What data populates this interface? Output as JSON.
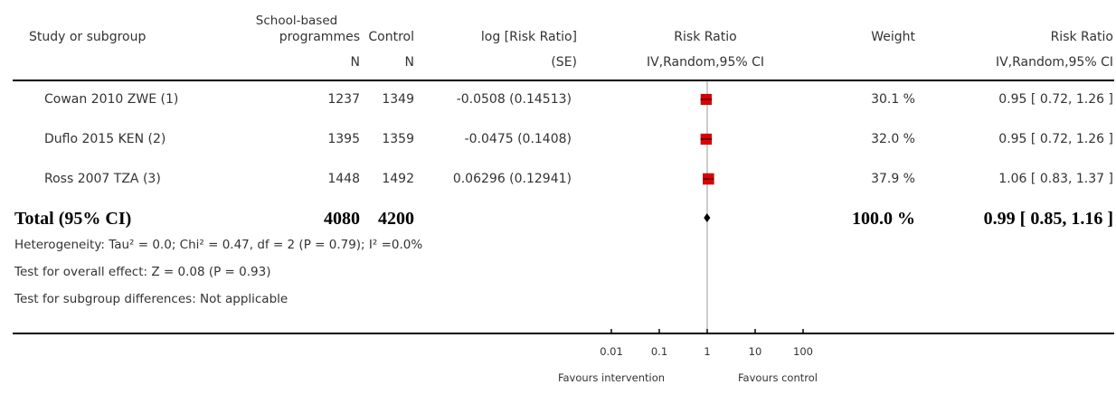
{
  "header": {
    "study": "Study or subgroup",
    "group1_line1": "School-based",
    "group1_line2": "programmes",
    "group1_n": "N",
    "control": "Control",
    "control_n": "N",
    "logrr": "log [Risk Ratio]",
    "logrr_se": "(SE)",
    "rr_plot": "Risk Ratio",
    "rr_plot_method": "IV,Random,95% CI",
    "weight": "Weight",
    "rr": "Risk Ratio",
    "rr_method": "IV,Random,95% CI"
  },
  "rows": [
    {
      "study": "Cowan 2010 ZWE (1)",
      "n1": "1237",
      "n2": "1349",
      "logrr": "-0.0508 (0.14513)",
      "weight": "30.1 %",
      "ci": "0.95 [ 0.72, 1.26 ]"
    },
    {
      "study": "Duflo 2015 KEN (2)",
      "n1": "1395",
      "n2": "1359",
      "logrr": "-0.0475 (0.1408)",
      "weight": "32.0 %",
      "ci": "0.95 [ 0.72, 1.26 ]"
    },
    {
      "study": "Ross 2007 TZA (3)",
      "n1": "1448",
      "n2": "1492",
      "logrr": "0.06296 (0.12941)",
      "weight": "37.9 %",
      "ci": "1.06 [ 0.83, 1.37 ]"
    }
  ],
  "total": {
    "label": "Total (95% CI)",
    "n1": "4080",
    "n2": "4200",
    "weight": "100.0 %",
    "ci": "0.99 [ 0.85, 1.16 ]"
  },
  "notes": {
    "heterogeneity": "Heterogeneity: Tau² = 0.0; Chi² = 0.47, df = 2 (P = 0.79); I² =0.0%",
    "overall": "Test for overall effect: Z = 0.08 (P = 0.93)",
    "subgroup": "Test for subgroup differences: Not applicable"
  },
  "axis": {
    "ticks": [
      "0.01",
      "0.1",
      "1",
      "10",
      "100"
    ],
    "favours_left": "Favours intervention",
    "favours_right": "Favours control"
  },
  "colors": {
    "marker": "#dd0000",
    "text": "#333333"
  },
  "chart_data": {
    "type": "forest",
    "scale": "log",
    "xlim": [
      0.01,
      100
    ],
    "null_line": 1,
    "studies": [
      {
        "name": "Cowan 2010 ZWE (1)",
        "rr": 0.95,
        "lower": 0.72,
        "upper": 1.26,
        "weight": 30.1
      },
      {
        "name": "Duflo 2015 KEN (2)",
        "rr": 0.95,
        "lower": 0.72,
        "upper": 1.26,
        "weight": 32.0
      },
      {
        "name": "Ross 2007 TZA (3)",
        "rr": 1.06,
        "lower": 0.83,
        "upper": 1.37,
        "weight": 37.9
      }
    ],
    "pooled": {
      "rr": 0.99,
      "lower": 0.85,
      "upper": 1.16
    }
  }
}
